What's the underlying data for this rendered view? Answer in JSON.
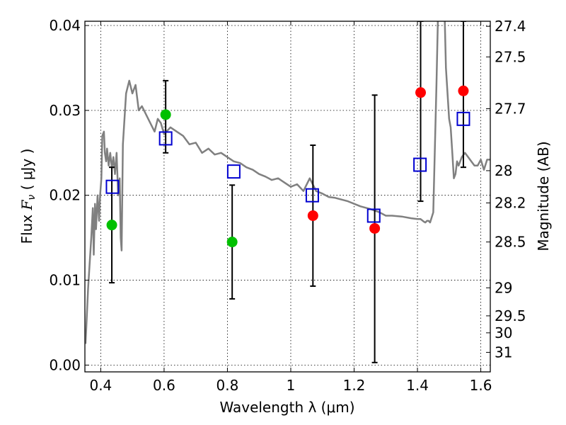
{
  "chart_data": {
    "type": "scatter",
    "xlabel": "Wavelength  λ (μm)",
    "ylabel": "Flux  F_ν  ( μJy )",
    "ylabel_parts": {
      "prefix": "Flux ",
      "symbol": "F",
      "subscript": "ν",
      "suffix": "  ( μJy )"
    },
    "y2label": "Magnitude (AB)",
    "xlim": [
      0.35,
      1.63
    ],
    "ylim": [
      -0.0008,
      0.0405
    ],
    "grid": true,
    "xticks": [
      0.4,
      0.6,
      0.8,
      1.0,
      1.2,
      1.4,
      1.6
    ],
    "xtick_labels": [
      "0.4",
      "0.6",
      "0.8",
      "1",
      "1.2",
      "1.4",
      "1.6"
    ],
    "yticks": [
      0.0,
      0.01,
      0.02,
      0.03,
      0.04
    ],
    "ytick_labels": [
      "0.00",
      "0.01",
      "0.02",
      "0.03",
      "0.04"
    ],
    "magnitude_ticks": [
      {
        "label": "27.4",
        "flux": 0.0399
      },
      {
        "label": "27.5",
        "flux": 0.0363
      },
      {
        "label": "27.7",
        "flux": 0.0302
      },
      {
        "label": "28",
        "flux": 0.0229
      },
      {
        "label": "28.2",
        "flux": 0.0191
      },
      {
        "label": "28.5",
        "flux": 0.0145
      },
      {
        "label": "29",
        "flux": 0.0091
      },
      {
        "label": "29.5",
        "flux": 0.0058
      },
      {
        "label": "30",
        "flux": 0.0038
      },
      {
        "label": "31",
        "flux": 0.0015
      }
    ],
    "series": [
      {
        "name": "model SED",
        "kind": "line",
        "color": "#808080",
        "x": [
          0.352,
          0.36,
          0.37,
          0.375,
          0.378,
          0.382,
          0.385,
          0.39,
          0.395,
          0.398,
          0.402,
          0.405,
          0.41,
          0.413,
          0.417,
          0.42,
          0.425,
          0.43,
          0.435,
          0.44,
          0.445,
          0.45,
          0.455,
          0.46,
          0.463,
          0.466,
          0.47,
          0.48,
          0.49,
          0.5,
          0.51,
          0.52,
          0.53,
          0.55,
          0.57,
          0.58,
          0.59,
          0.6,
          0.62,
          0.64,
          0.66,
          0.68,
          0.7,
          0.72,
          0.74,
          0.76,
          0.78,
          0.8,
          0.82,
          0.84,
          0.86,
          0.88,
          0.9,
          0.92,
          0.94,
          0.96,
          0.98,
          1.0,
          1.02,
          1.04,
          1.06,
          1.08,
          1.1,
          1.12,
          1.14,
          1.16,
          1.18,
          1.2,
          1.22,
          1.25,
          1.28,
          1.3,
          1.32,
          1.35,
          1.38,
          1.4,
          1.41,
          1.42,
          1.425,
          1.43,
          1.435,
          1.44,
          1.45,
          1.46,
          1.47,
          1.48,
          1.49,
          1.5,
          1.505,
          1.51,
          1.515,
          1.52,
          1.525,
          1.53,
          1.54,
          1.55,
          1.56,
          1.57,
          1.58,
          1.59,
          1.6,
          1.61,
          1.62,
          1.63
        ],
        "y": [
          0.0025,
          0.009,
          0.015,
          0.0185,
          0.013,
          0.019,
          0.016,
          0.02,
          0.017,
          0.02,
          0.022,
          0.027,
          0.0275,
          0.025,
          0.024,
          0.0255,
          0.0235,
          0.025,
          0.0232,
          0.0245,
          0.0225,
          0.025,
          0.02,
          0.022,
          0.015,
          0.0135,
          0.026,
          0.032,
          0.0335,
          0.032,
          0.033,
          0.03,
          0.0305,
          0.029,
          0.0275,
          0.029,
          0.0285,
          0.0272,
          0.028,
          0.0275,
          0.027,
          0.026,
          0.0262,
          0.025,
          0.0255,
          0.0248,
          0.025,
          0.0245,
          0.024,
          0.0238,
          0.0233,
          0.023,
          0.0225,
          0.0222,
          0.0218,
          0.022,
          0.0215,
          0.021,
          0.0213,
          0.0205,
          0.022,
          0.0205,
          0.0202,
          0.0198,
          0.0197,
          0.0195,
          0.0193,
          0.019,
          0.0187,
          0.0184,
          0.018,
          0.0176,
          0.0176,
          0.0175,
          0.0173,
          0.0172,
          0.0172,
          0.0169,
          0.0168,
          0.017,
          0.017,
          0.0168,
          0.018,
          0.033,
          0.05,
          0.05,
          0.035,
          0.029,
          0.028,
          0.025,
          0.022,
          0.0225,
          0.024,
          0.0235,
          0.0245,
          0.025,
          0.0245,
          0.024,
          0.0235,
          0.0235,
          0.0242,
          0.023,
          0.0242,
          0.0242
        ]
      },
      {
        "name": "green photometry",
        "kind": "points",
        "color": "#00c000",
        "x": [
          0.435,
          0.605,
          0.815
        ],
        "y": [
          0.0165,
          0.0295,
          0.0145
        ]
      },
      {
        "name": "red photometry",
        "kind": "points",
        "color": "#ff0000",
        "x": [
          1.07,
          1.265,
          1.41,
          1.545
        ],
        "y": [
          0.0176,
          0.0161,
          0.0321,
          0.0323
        ]
      },
      {
        "name": "model photometry",
        "kind": "squares",
        "color": "#0000d0",
        "x": [
          0.437,
          0.605,
          0.82,
          1.068,
          1.262,
          1.408,
          1.545
        ],
        "y": [
          0.021,
          0.0267,
          0.0228,
          0.02,
          0.0176,
          0.0236,
          0.029
        ]
      },
      {
        "name": "error bars",
        "kind": "errorbars",
        "color": "#000000",
        "x": [
          0.435,
          0.605,
          0.815,
          1.07,
          1.265,
          1.41,
          1.545
        ],
        "y_low": [
          0.0097,
          0.025,
          0.0078,
          0.0093,
          0.0003,
          0.0193,
          0.0233
        ],
        "y_high": [
          0.0233,
          0.0335,
          0.0212,
          0.0259,
          0.0318,
          0.0405,
          0.0405
        ]
      }
    ]
  }
}
